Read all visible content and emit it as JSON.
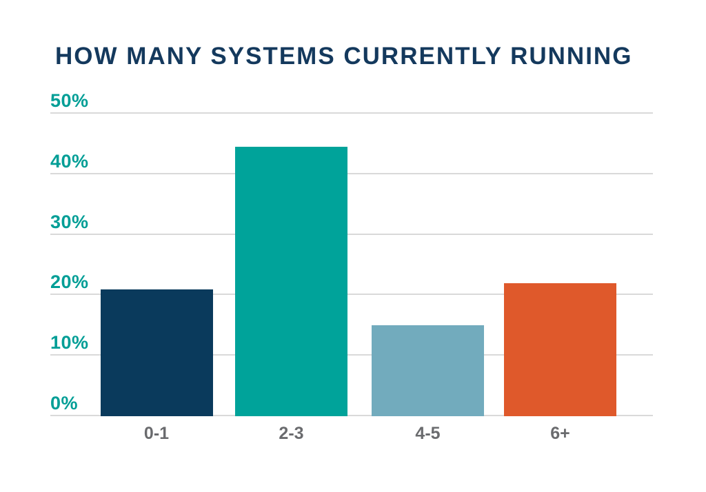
{
  "chart_data": {
    "type": "bar",
    "title": "HOW MANY SYSTEMS CURRENTLY RUNNING",
    "categories": [
      "0-1",
      "2-3",
      "4-5",
      "6+"
    ],
    "values": [
      21,
      44.5,
      15,
      22
    ],
    "unit": "%",
    "xlabel": "",
    "ylabel": "",
    "ylim": [
      0,
      50
    ],
    "yticks": [
      0,
      10,
      20,
      30,
      40,
      50
    ],
    "ytick_labels": [
      "0%",
      "10%",
      "20%",
      "30%",
      "40%",
      "50%"
    ],
    "grid": true,
    "legend": false,
    "bar_colors": [
      "#0a3a5c",
      "#00a39a",
      "#72abbd",
      "#df592b"
    ],
    "colors": {
      "title": "#14395d",
      "ytick_text": "#009e96",
      "xtick_text": "#6a6b6e",
      "gridline": "#d9d9d9",
      "background": "#ffffff"
    }
  }
}
